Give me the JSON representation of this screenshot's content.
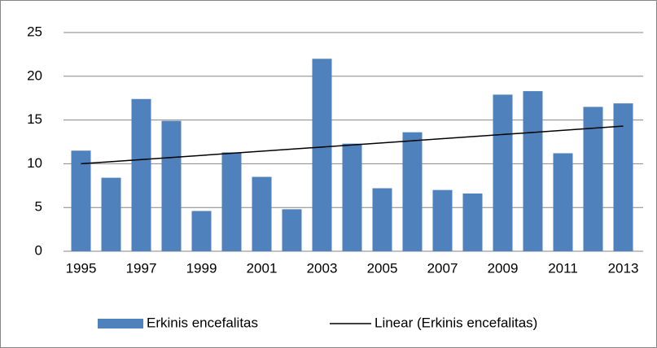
{
  "chart_data": {
    "type": "bar",
    "categories": [
      "1995",
      null,
      "1997",
      null,
      "1999",
      null,
      "2001",
      null,
      "2003",
      null,
      "2005",
      null,
      "2007",
      null,
      "2009",
      null,
      "2011",
      null,
      "2013"
    ],
    "series": [
      {
        "name": "Erkinis encefalitas",
        "color": "#4f81bd",
        "values": [
          11.5,
          8.4,
          17.4,
          14.9,
          4.6,
          11.3,
          8.5,
          4.8,
          22.0,
          12.3,
          7.2,
          13.6,
          7.0,
          6.6,
          17.9,
          18.3,
          11.2,
          16.5,
          16.9
        ]
      }
    ],
    "trendline": {
      "name": "Linear (Erkinis encefalitas)",
      "color": "#000000",
      "values": [
        10.0,
        14.3
      ]
    },
    "ylim": [
      0,
      25
    ],
    "yticks": [
      0,
      5,
      10,
      15,
      20,
      25
    ],
    "grid": true,
    "legend": "bottom"
  }
}
